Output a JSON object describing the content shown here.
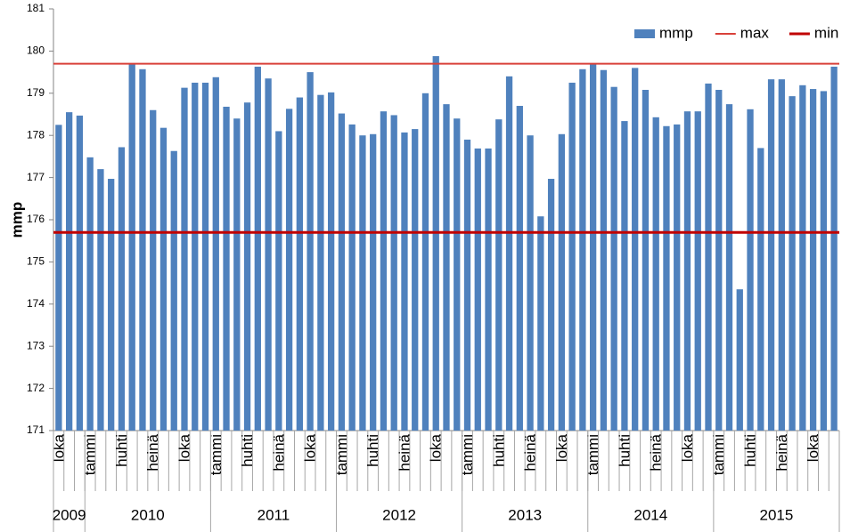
{
  "chart_data": {
    "type": "bar",
    "y_label": "mmp",
    "categories": [
      "loka",
      null,
      null,
      "tammi",
      null,
      null,
      "huhti",
      null,
      null,
      "heinä",
      null,
      null,
      "loka",
      null,
      null,
      "tammi",
      null,
      null,
      "huhti",
      null,
      null,
      "heinä",
      null,
      null,
      "loka",
      null,
      null,
      "tammi",
      null,
      null,
      "huhti",
      null,
      null,
      "heinä",
      null,
      null,
      "loka",
      null,
      null,
      "tammi",
      null,
      null,
      "huhti",
      null,
      null,
      "heinä",
      null,
      null,
      "loka",
      null,
      null,
      "tammi",
      null,
      null,
      "huhti",
      null,
      null,
      "heinä",
      null,
      null,
      "loka",
      null,
      null,
      "tammi",
      null,
      null,
      "huhti",
      null,
      null,
      "heinä",
      null,
      null,
      "loka",
      null,
      null
    ],
    "x_groups": [
      {
        "label": "2009",
        "span": 3
      },
      {
        "label": "2010",
        "span": 12
      },
      {
        "label": "2011",
        "span": 12
      },
      {
        "label": "2012",
        "span": 12
      },
      {
        "label": "2013",
        "span": 12
      },
      {
        "label": "2014",
        "span": 12
      },
      {
        "label": "2015",
        "span": 12
      }
    ],
    "series": [
      {
        "name": "mmp",
        "color": "#4f81bd",
        "values": [
          178.25,
          178.55,
          178.47,
          177.48,
          177.2,
          176.97,
          177.72,
          179.7,
          179.57,
          178.6,
          178.18,
          177.63,
          179.13,
          179.25,
          179.25,
          179.38,
          178.68,
          178.4,
          178.78,
          179.63,
          179.35,
          178.1,
          178.63,
          178.9,
          179.5,
          178.96,
          179.02,
          178.52,
          178.26,
          178.0,
          178.03,
          178.57,
          178.48,
          178.07,
          178.15,
          179.0,
          179.88,
          178.74,
          178.4,
          177.9,
          177.69,
          177.69,
          178.38,
          179.4,
          178.7,
          178.0,
          176.08,
          176.97,
          178.03,
          179.25,
          179.57,
          179.7,
          179.55,
          179.15,
          178.34,
          179.6,
          179.08,
          178.43,
          178.22,
          178.26,
          178.57,
          178.57,
          179.23,
          179.08,
          178.74,
          174.35,
          178.62,
          177.7,
          179.33,
          179.33,
          178.93,
          179.19,
          179.1,
          179.05,
          179.63
        ]
      }
    ],
    "lines": [
      {
        "name": "max",
        "color": "#d9413a",
        "value": 179.7
      },
      {
        "name": "min",
        "color": "#c00000",
        "value": 175.7
      }
    ],
    "ylim": [
      171,
      181
    ],
    "yticks": [
      171,
      172,
      173,
      174,
      175,
      176,
      177,
      178,
      179,
      180,
      181
    ],
    "grid": false,
    "legend": "top-right"
  }
}
